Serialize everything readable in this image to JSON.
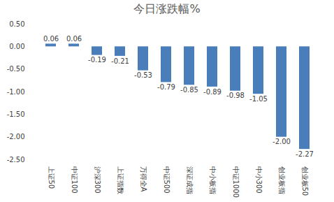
{
  "chart_data": {
    "type": "bar",
    "title": "今日涨跌幅%",
    "categories": [
      "上证50",
      "中证100",
      "沪深300",
      "上证指数",
      "万得全A",
      "中证500",
      "深证成指",
      "中小板指",
      "中证1000",
      "中小300",
      "创业板指",
      "创业板50"
    ],
    "values": [
      0.06,
      0.06,
      -0.19,
      -0.21,
      -0.53,
      -0.79,
      -0.85,
      -0.89,
      -0.98,
      -1.05,
      -2.0,
      -2.27
    ],
    "value_labels": [
      "0.06",
      "0.06",
      "-0.19",
      "-0.21",
      "-0.53",
      "-0.79",
      "-0.85",
      "-0.89",
      "-0.98",
      "-1.05",
      "-2.00",
      "-2.27"
    ],
    "color": "#4a7ebb",
    "ylim": [
      -2.5,
      0.5
    ],
    "yticks": [
      {
        "value": 0.5,
        "label": "0.50"
      },
      {
        "value": 0,
        "label": "0.00"
      },
      {
        "value": -0.5,
        "label": "-0.50"
      },
      {
        "value": -1,
        "label": "-1.00"
      },
      {
        "value": -1.5,
        "label": "-1.50"
      },
      {
        "value": -2,
        "label": "-2.00"
      },
      {
        "value": -2.5,
        "label": "-2.50"
      }
    ],
    "grid": false,
    "data_labels": true
  }
}
